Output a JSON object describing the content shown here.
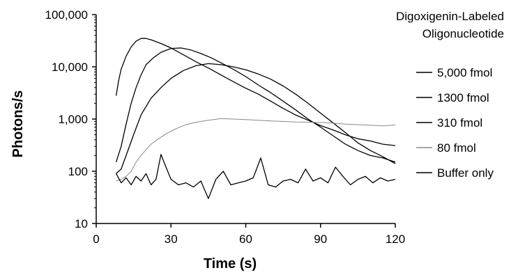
{
  "chart_data": {
    "type": "line",
    "title": "",
    "annotation_lines": [
      "Digoxigenin-Labeled",
      "Oligonucleotide"
    ],
    "xlabel": "Time (s)",
    "ylabel": "Photons/s",
    "x_scale": "linear",
    "y_scale": "log",
    "xlim": [
      0,
      120
    ],
    "ylim": [
      10,
      100000
    ],
    "x_ticks": [
      0,
      30,
      60,
      90,
      120
    ],
    "x_tick_labels": [
      "0",
      "30",
      "60",
      "90",
      "120"
    ],
    "y_ticks": [
      10,
      100,
      1000,
      10000,
      100000
    ],
    "y_tick_labels": [
      "10",
      "100",
      "1,000",
      "10,000",
      "100,000"
    ],
    "grid": false,
    "legend_position": "right",
    "series": [
      {
        "name": "5,000 fmol",
        "color": "#000000",
        "points": [
          [
            8,
            2800
          ],
          [
            9,
            5500
          ],
          [
            10,
            9000
          ],
          [
            12,
            16000
          ],
          [
            14,
            24000
          ],
          [
            16,
            31000
          ],
          [
            18,
            35000
          ],
          [
            20,
            35000
          ],
          [
            22,
            33000
          ],
          [
            26,
            28000
          ],
          [
            30,
            23000
          ],
          [
            35,
            17000
          ],
          [
            40,
            12500
          ],
          [
            45,
            9500
          ],
          [
            50,
            7000
          ],
          [
            55,
            5200
          ],
          [
            60,
            3900
          ],
          [
            65,
            3000
          ],
          [
            70,
            2200
          ],
          [
            75,
            1600
          ],
          [
            80,
            1200
          ],
          [
            85,
            950
          ],
          [
            90,
            750
          ],
          [
            95,
            620
          ],
          [
            100,
            500
          ],
          [
            105,
            420
          ],
          [
            110,
            380
          ],
          [
            115,
            330
          ],
          [
            120,
            310
          ]
        ]
      },
      {
        "name": "1300 fmol",
        "color": "#000000",
        "points": [
          [
            8,
            150
          ],
          [
            10,
            300
          ],
          [
            12,
            800
          ],
          [
            14,
            2000
          ],
          [
            16,
            4000
          ],
          [
            18,
            7000
          ],
          [
            20,
            11000
          ],
          [
            23,
            15000
          ],
          [
            26,
            19000
          ],
          [
            30,
            22500
          ],
          [
            34,
            23000
          ],
          [
            38,
            21000
          ],
          [
            42,
            18000
          ],
          [
            46,
            15000
          ],
          [
            50,
            12000
          ],
          [
            55,
            9000
          ],
          [
            60,
            6500
          ],
          [
            65,
            4500
          ],
          [
            70,
            3200
          ],
          [
            75,
            2200
          ],
          [
            80,
            1500
          ],
          [
            85,
            1000
          ],
          [
            90,
            700
          ],
          [
            95,
            480
          ],
          [
            100,
            330
          ],
          [
            105,
            250
          ],
          [
            110,
            200
          ],
          [
            115,
            180
          ],
          [
            120,
            150
          ]
        ]
      },
      {
        "name": "310 fmol",
        "color": "#000000",
        "points": [
          [
            8,
            90
          ],
          [
            10,
            110
          ],
          [
            12,
            200
          ],
          [
            15,
            500
          ],
          [
            18,
            1200
          ],
          [
            22,
            2500
          ],
          [
            26,
            4000
          ],
          [
            30,
            6000
          ],
          [
            35,
            8500
          ],
          [
            40,
            10500
          ],
          [
            45,
            11500
          ],
          [
            50,
            11000
          ],
          [
            55,
            10000
          ],
          [
            60,
            8800
          ],
          [
            65,
            7300
          ],
          [
            70,
            5800
          ],
          [
            75,
            4300
          ],
          [
            80,
            3000
          ],
          [
            85,
            2000
          ],
          [
            90,
            1300
          ],
          [
            95,
            850
          ],
          [
            100,
            550
          ],
          [
            105,
            350
          ],
          [
            110,
            250
          ],
          [
            115,
            190
          ],
          [
            120,
            140
          ]
        ]
      },
      {
        "name": "80 fmol",
        "color": "#888888",
        "points": [
          [
            8,
            65
          ],
          [
            10,
            70
          ],
          [
            12,
            80
          ],
          [
            14,
            100
          ],
          [
            16,
            150
          ],
          [
            18,
            200
          ],
          [
            20,
            260
          ],
          [
            22,
            330
          ],
          [
            25,
            420
          ],
          [
            28,
            520
          ],
          [
            32,
            650
          ],
          [
            36,
            780
          ],
          [
            40,
            870
          ],
          [
            45,
            950
          ],
          [
            50,
            1020
          ],
          [
            55,
            1000
          ],
          [
            60,
            980
          ],
          [
            65,
            950
          ],
          [
            70,
            920
          ],
          [
            75,
            900
          ],
          [
            80,
            880
          ],
          [
            85,
            870
          ],
          [
            90,
            860
          ],
          [
            95,
            840
          ],
          [
            100,
            800
          ],
          [
            105,
            780
          ],
          [
            110,
            760
          ],
          [
            115,
            740
          ],
          [
            120,
            770
          ]
        ]
      },
      {
        "name": "Buffer only",
        "color": "#000000",
        "points": [
          [
            8,
            90
          ],
          [
            10,
            60
          ],
          [
            12,
            75
          ],
          [
            14,
            55
          ],
          [
            16,
            80
          ],
          [
            18,
            65
          ],
          [
            20,
            90
          ],
          [
            22,
            55
          ],
          [
            24,
            70
          ],
          [
            26,
            210
          ],
          [
            28,
            120
          ],
          [
            30,
            70
          ],
          [
            33,
            55
          ],
          [
            36,
            60
          ],
          [
            39,
            50
          ],
          [
            42,
            65
          ],
          [
            45,
            30
          ],
          [
            48,
            70
          ],
          [
            51,
            100
          ],
          [
            54,
            55
          ],
          [
            57,
            60
          ],
          [
            60,
            65
          ],
          [
            63,
            75
          ],
          [
            66,
            180
          ],
          [
            69,
            55
          ],
          [
            72,
            50
          ],
          [
            75,
            65
          ],
          [
            78,
            70
          ],
          [
            81,
            60
          ],
          [
            84,
            110
          ],
          [
            87,
            65
          ],
          [
            90,
            75
          ],
          [
            93,
            60
          ],
          [
            96,
            120
          ],
          [
            99,
            80
          ],
          [
            102,
            55
          ],
          [
            105,
            70
          ],
          [
            108,
            80
          ],
          [
            111,
            60
          ],
          [
            114,
            75
          ],
          [
            117,
            65
          ],
          [
            120,
            70
          ]
        ]
      }
    ]
  }
}
